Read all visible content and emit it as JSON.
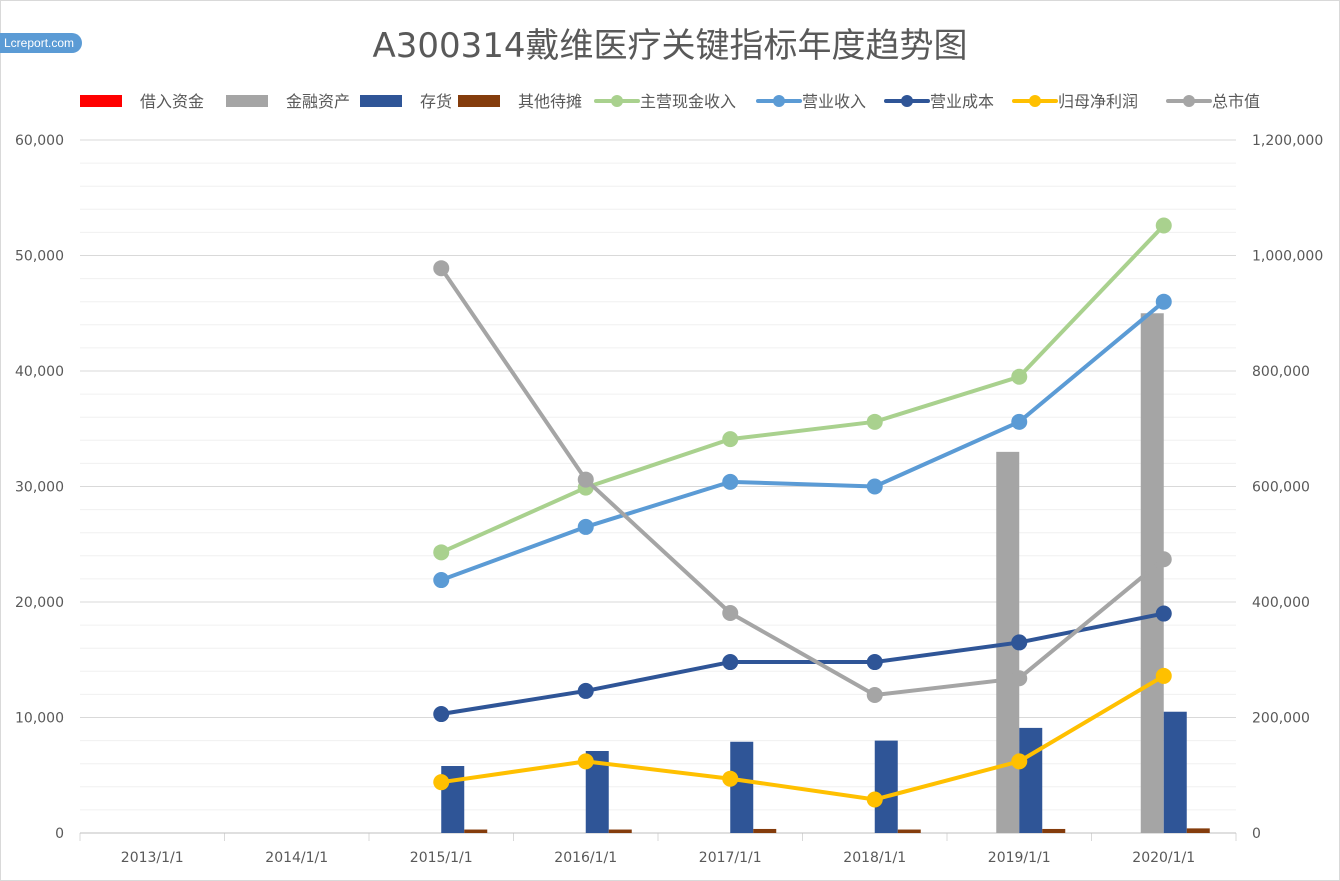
{
  "watermark": "Lcreport.com",
  "chart_data": {
    "type": "bar",
    "title": "A300314戴维医疗关键指标年度趋势图",
    "categories": [
      "2013/1/1",
      "2014/1/1",
      "2015/1/1",
      "2016/1/1",
      "2017/1/1",
      "2018/1/1",
      "2019/1/1",
      "2020/1/1"
    ],
    "ylim_left": [
      0,
      60000
    ],
    "ylim_right": [
      0,
      1200000
    ],
    "yticks_left": [
      "0",
      "10,000",
      "20,000",
      "30,000",
      "40,000",
      "50,000",
      "60,000"
    ],
    "yticks_right": [
      "0",
      "200,000",
      "400,000",
      "600,000",
      "800,000",
      "1,000,000",
      "1,200,000"
    ],
    "grid": true,
    "legend_position": "top",
    "bar_series": [
      {
        "name": "借入资金",
        "color": "#ff0000",
        "values": [
          null,
          null,
          null,
          null,
          null,
          null,
          null,
          null
        ]
      },
      {
        "name": "金融资产",
        "color": "#a5a5a5",
        "values": [
          null,
          null,
          null,
          null,
          null,
          null,
          33000,
          45000
        ]
      },
      {
        "name": "存货",
        "color": "#2f5597",
        "values": [
          null,
          null,
          5800,
          7100,
          7900,
          8000,
          9100,
          10500
        ]
      },
      {
        "name": "其他待摊",
        "color": "#843c0c",
        "values": [
          null,
          null,
          300,
          300,
          350,
          300,
          350,
          400
        ]
      }
    ],
    "line_series": [
      {
        "name": "主营现金收入",
        "color": "#a9d18e",
        "axis": "left",
        "values": [
          null,
          null,
          24300,
          29900,
          34100,
          35600,
          39500,
          52600
        ]
      },
      {
        "name": "营业收入",
        "color": "#5b9bd5",
        "axis": "left",
        "values": [
          null,
          null,
          21900,
          26500,
          30400,
          30000,
          35600,
          46000
        ]
      },
      {
        "name": "营业成本",
        "color": "#2f5597",
        "axis": "left",
        "values": [
          null,
          null,
          10300,
          12300,
          14800,
          14800,
          16500,
          19000
        ]
      },
      {
        "name": "归母净利润",
        "color": "#ffc000",
        "axis": "left",
        "values": [
          null,
          null,
          4400,
          6200,
          4700,
          2900,
          6200,
          13600
        ]
      },
      {
        "name": "总市值",
        "color": "#a5a5a5",
        "axis": "right",
        "values": [
          null,
          null,
          978000,
          612000,
          381000,
          239000,
          268000,
          474000
        ]
      }
    ]
  }
}
